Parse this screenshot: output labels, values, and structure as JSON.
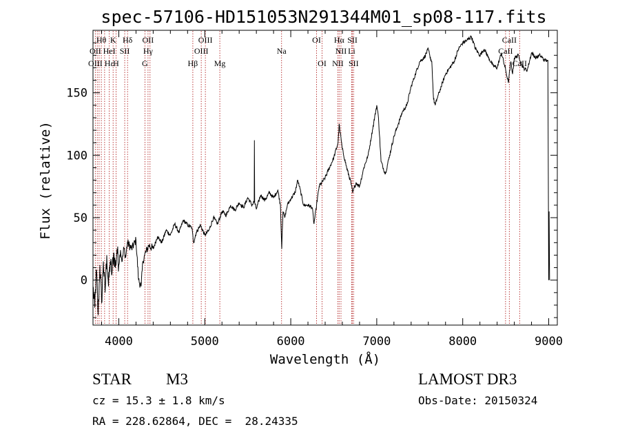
{
  "chart_data": {
    "type": "line",
    "title": "spec-57106-HD151053N291344M01_sp08-117.fits",
    "xlabel": "Wavelength (Å)",
    "ylabel": "Flux (relative)",
    "xlim": [
      3700,
      9100
    ],
    "ylim": [
      -36,
      200
    ],
    "x_ticks": [
      4000,
      5000,
      6000,
      7000,
      8000,
      9000
    ],
    "y_ticks": [
      0,
      50,
      100,
      150
    ],
    "series": [
      {
        "name": "spectrum",
        "x": [
          3700,
          3720,
          3740,
          3760,
          3780,
          3800,
          3820,
          3840,
          3860,
          3880,
          3900,
          3920,
          3940,
          3960,
          3980,
          4000,
          4020,
          4040,
          4060,
          4080,
          4100,
          4150,
          4200,
          4230,
          4260,
          4280,
          4300,
          4350,
          4400,
          4450,
          4500,
          4550,
          4600,
          4650,
          4700,
          4750,
          4800,
          4850,
          4870,
          4900,
          4950,
          5000,
          5050,
          5100,
          5150,
          5200,
          5250,
          5300,
          5350,
          5400,
          5450,
          5500,
          5550,
          5575,
          5577,
          5580,
          5600,
          5650,
          5700,
          5750,
          5800,
          5850,
          5880,
          5895,
          5900,
          5910,
          5930,
          5960,
          6000,
          6050,
          6080,
          6100,
          6150,
          6200,
          6250,
          6270,
          6300,
          6330,
          6400,
          6450,
          6500,
          6550,
          6563,
          6575,
          6600,
          6650,
          6700,
          6720,
          6760,
          6800,
          6850,
          6900,
          6950,
          7000,
          7020,
          7050,
          7100,
          7150,
          7200,
          7250,
          7300,
          7350,
          7400,
          7450,
          7500,
          7550,
          7600,
          7620,
          7640,
          7660,
          7680,
          7700,
          7750,
          7800,
          7850,
          7900,
          7950,
          8000,
          8050,
          8100,
          8150,
          8200,
          8250,
          8300,
          8350,
          8400,
          8450,
          8500,
          8530,
          8560,
          8580,
          8600,
          8650,
          8700,
          8750,
          8800,
          8850,
          8900,
          8950,
          8990,
          9000,
          9005,
          9010
        ],
        "y": [
          -5,
          -22,
          8,
          -28,
          12,
          -18,
          15,
          -10,
          20,
          -5,
          15,
          5,
          22,
          10,
          25,
          12,
          24,
          15,
          26,
          18,
          30,
          25,
          32,
          0,
          -5,
          15,
          20,
          28,
          25,
          35,
          30,
          40,
          36,
          45,
          38,
          48,
          44,
          42,
          30,
          38,
          44,
          36,
          40,
          50,
          45,
          55,
          52,
          60,
          56,
          62,
          58,
          66,
          60,
          63,
          112,
          62,
          57,
          68,
          64,
          70,
          66,
          72,
          60,
          25,
          38,
          55,
          50,
          60,
          65,
          70,
          80,
          75,
          60,
          60,
          58,
          45,
          60,
          75,
          82,
          90,
          98,
          110,
          125,
          118,
          105,
          90,
          78,
          70,
          78,
          75,
          90,
          100,
          120,
          140,
          130,
          95,
          85,
          100,
          115,
          125,
          135,
          140,
          155,
          165,
          175,
          178,
          185,
          178,
          175,
          145,
          140,
          145,
          155,
          165,
          170,
          175,
          185,
          190,
          192,
          195,
          185,
          180,
          185,
          178,
          172,
          170,
          182,
          168,
          158,
          175,
          165,
          178,
          180,
          170,
          168,
          182,
          178,
          180,
          176,
          176,
          0,
          55,
          0
        ]
      }
    ],
    "annotations": [
      {
        "label": "Hθ",
        "x": 3797,
        "row": 1
      },
      {
        "label": "K",
        "x": 3934,
        "row": 1
      },
      {
        "label": "Hδ",
        "x": 4102,
        "row": 1
      },
      {
        "label": "OII",
        "x": 4340,
        "row": 1
      },
      {
        "label": "OIII",
        "x": 5007,
        "row": 1
      },
      {
        "label": "OI",
        "x": 6300,
        "row": 1
      },
      {
        "label": "Hα",
        "x": 6563,
        "row": 1
      },
      {
        "label": "SII",
        "x": 6717,
        "row": 1
      },
      {
        "label": "CaII",
        "x": 8542,
        "row": 1
      },
      {
        "label": "OII",
        "x": 3727,
        "row": 2
      },
      {
        "label": "HeI",
        "x": 3889,
        "row": 2
      },
      {
        "label": "SII",
        "x": 4069,
        "row": 2
      },
      {
        "label": "Hγ",
        "x": 4340,
        "row": 2
      },
      {
        "label": "OIII",
        "x": 4959,
        "row": 2
      },
      {
        "label": "Na",
        "x": 5893,
        "row": 2
      },
      {
        "label": "NII",
        "x": 6584,
        "row": 2
      },
      {
        "label": "Li",
        "x": 6708,
        "row": 2
      },
      {
        "label": "CaII",
        "x": 8498,
        "row": 2
      },
      {
        "label": "OIII",
        "x": 3727,
        "row": 3
      },
      {
        "label": "Hε",
        "x": 3889,
        "row": 3
      },
      {
        "label": "H",
        "x": 3968,
        "row": 3
      },
      {
        "label": "G",
        "x": 4304,
        "row": 3
      },
      {
        "label": "Hβ",
        "x": 4861,
        "row": 3
      },
      {
        "label": "Mg",
        "x": 5175,
        "row": 3
      },
      {
        "label": "OI",
        "x": 6364,
        "row": 3
      },
      {
        "label": "NII",
        "x": 6548,
        "row": 3
      },
      {
        "label": "SII",
        "x": 6731,
        "row": 3
      },
      {
        "label": "CaII",
        "x": 8662,
        "row": 3
      }
    ],
    "line_markers": [
      3727,
      3750,
      3771,
      3797,
      3835,
      3889,
      3934,
      3968,
      4069,
      4102,
      4304,
      4340,
      4363,
      4861,
      4959,
      5007,
      5175,
      5893,
      6300,
      6364,
      6548,
      6563,
      6584,
      6708,
      6717,
      6731,
      8498,
      8542,
      8662
    ]
  },
  "info": {
    "object_type": "STAR",
    "subclass": "M3",
    "survey": "LAMOST DR3",
    "redshift": "cz = 15.3 ± 1.8 km/s",
    "obs_date": "Obs-Date: 20150324",
    "coords": "RA = 228.62864, DEC =  28.24335"
  }
}
